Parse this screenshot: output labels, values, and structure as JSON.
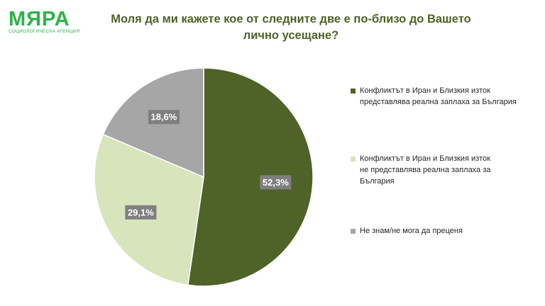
{
  "logo": {
    "main": "МЯРА",
    "sub": "СОЦИОЛОГИЧЕСКА АГЕНЦИЯ"
  },
  "header": {
    "title_lines": [
      "Моля да ми кажете кое от следните две е по-близо до Вашето",
      "лично усещане?"
    ]
  },
  "chart_data": {
    "type": "pie",
    "title": "Моля да ми кажете кое от следните две е по-близо до Вашето лично усещане?",
    "slices": [
      {
        "label_lines": [
          "Конфликтът в Иран и Близкия изток",
          "представлява реална заплаха за България"
        ],
        "value": 52.3,
        "value_label": "52,3%",
        "color": "#4f6228"
      },
      {
        "label_lines": [
          "Конфликтът в Иран и Близкия изток",
          "не представлява реална заплаха за",
          "България"
        ],
        "value": 29.1,
        "value_label": "29,1%",
        "color": "#d8e4bc"
      },
      {
        "label_lines": [
          "Не знам/не мога да преценя"
        ],
        "value": 18.6,
        "value_label": "18,6%",
        "color": "#a6a6a6"
      }
    ],
    "legend_position": "right"
  }
}
